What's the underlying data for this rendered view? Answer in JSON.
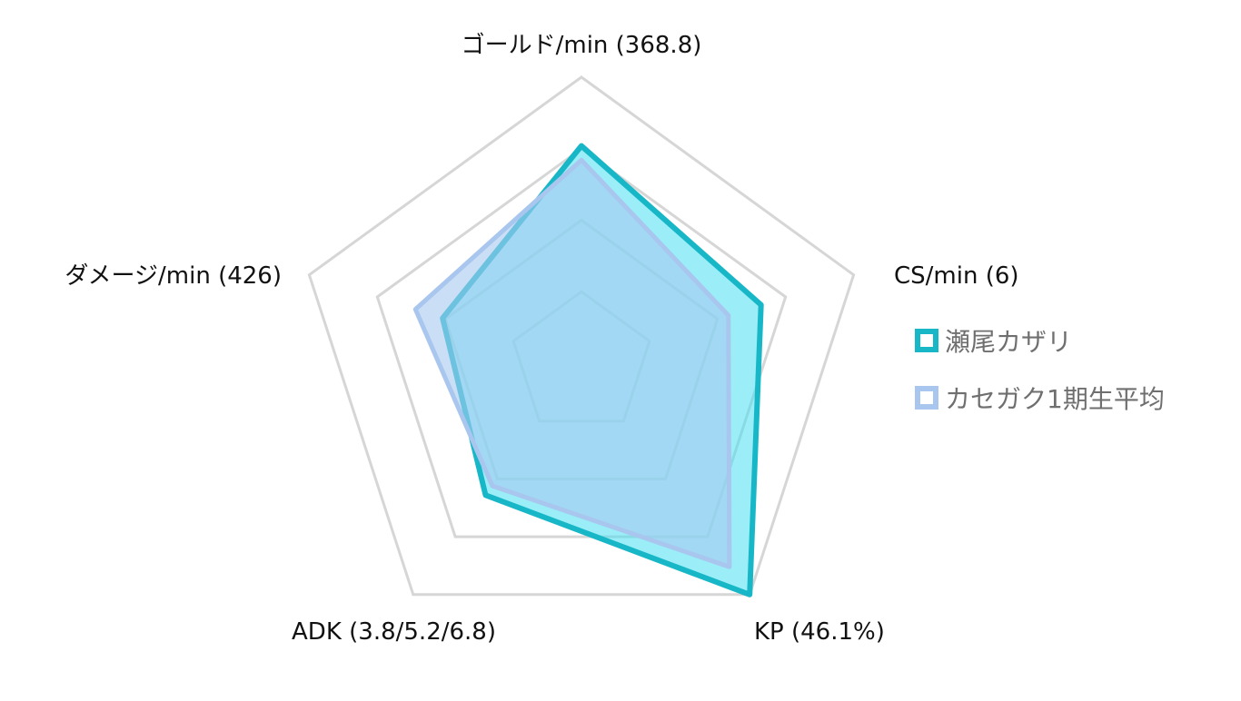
{
  "chart_data": {
    "type": "radar",
    "axes": [
      "ゴールド/min (368.8)",
      "CS/min (6)",
      "KP (46.1%)",
      "ADK (3.8/5.2/6.8)",
      "ダメージ/min (426)"
    ],
    "range": [
      0,
      100
    ],
    "rings": 4,
    "grid": true,
    "legend_position": "right",
    "series": [
      {
        "name": "瀬尾カザリ",
        "values": [
          76,
          66,
          100,
          57,
          51
        ],
        "stroke": "#17b7c7",
        "fill": "#48e0f0",
        "fill_opacity": 0.55
      },
      {
        "name": "カセガク1期生平均",
        "values": [
          71,
          54,
          88,
          53,
          61
        ],
        "stroke": "#a9c6ee",
        "fill": "#a6c9f0",
        "fill_opacity": 0.6
      }
    ]
  }
}
